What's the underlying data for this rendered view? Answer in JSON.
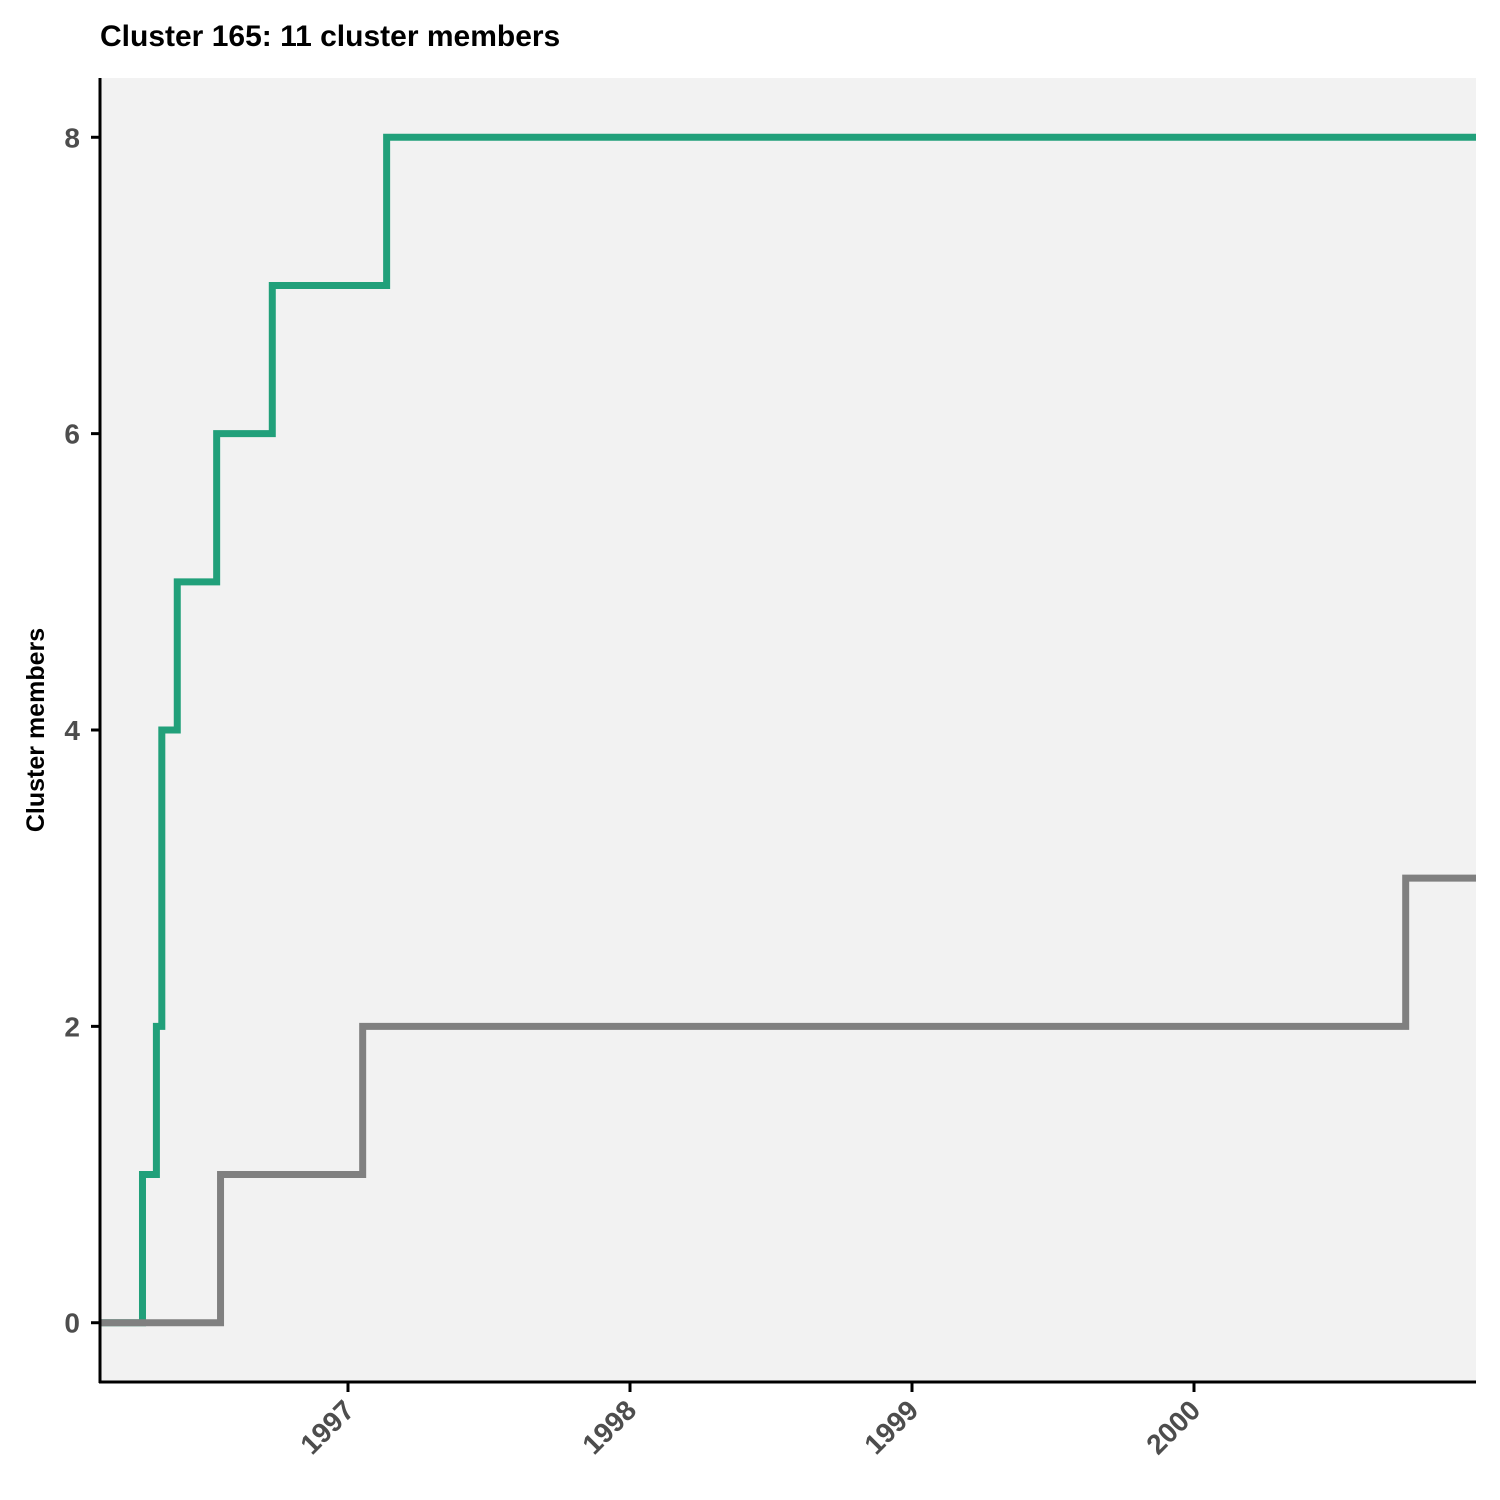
{
  "chart_data": {
    "type": "line",
    "step": true,
    "title": "Cluster 165: 11 cluster members",
    "xlabel": "",
    "ylabel": "Cluster members",
    "x_ticks": [
      "1997",
      "1998",
      "1999",
      "2000"
    ],
    "y_ticks": [
      "0",
      "2",
      "4",
      "6",
      "8"
    ],
    "xlim": [
      "1996-02-15",
      "2000-12-31"
    ],
    "ylim": [
      -0.4,
      8.4
    ],
    "grid": false,
    "panel_background": "#f2f2f2",
    "legend": "none",
    "series": [
      {
        "color": "#21a07a",
        "points": [
          [
            "1996-02-15",
            0
          ],
          [
            "1996-04-10",
            1
          ],
          [
            "1996-04-28",
            2
          ],
          [
            "1996-05-05",
            4
          ],
          [
            "1996-05-25",
            5
          ],
          [
            "1996-07-15",
            6
          ],
          [
            "1996-09-25",
            7
          ],
          [
            "1997-02-20",
            8
          ],
          [
            "2000-12-31",
            8
          ]
        ]
      },
      {
        "color": "#808080",
        "points": [
          [
            "1996-02-15",
            0
          ],
          [
            "1996-07-20",
            1
          ],
          [
            "1997-01-20",
            2
          ],
          [
            "2000-10-01",
            3
          ],
          [
            "2000-12-31",
            3
          ]
        ]
      }
    ]
  }
}
